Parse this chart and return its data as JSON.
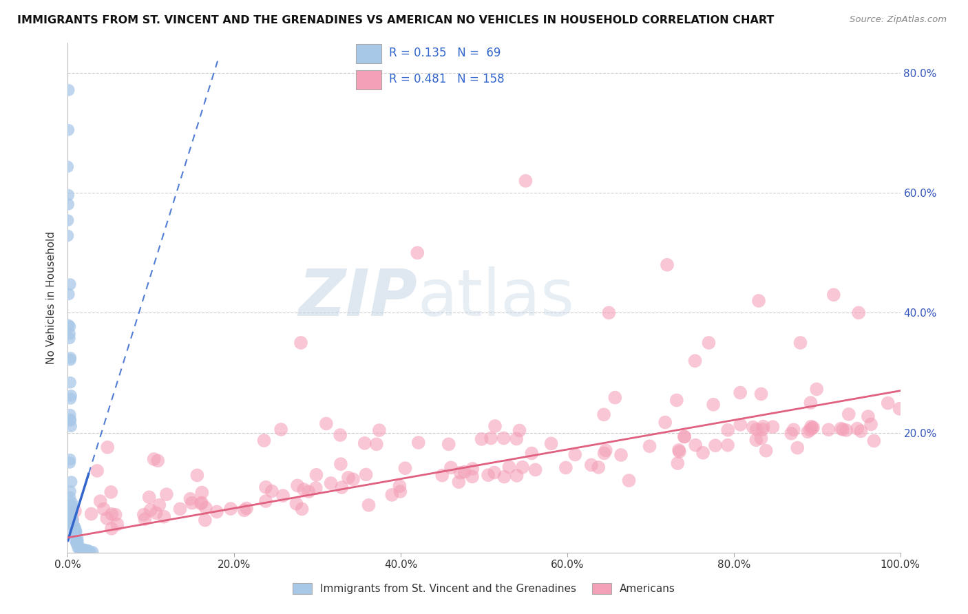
{
  "title": "IMMIGRANTS FROM ST. VINCENT AND THE GRENADINES VS AMERICAN NO VEHICLES IN HOUSEHOLD CORRELATION CHART",
  "source": "Source: ZipAtlas.com",
  "ylabel": "No Vehicles in Household",
  "blue_R": 0.135,
  "blue_N": 69,
  "pink_R": 0.481,
  "pink_N": 158,
  "blue_color": "#a8c8e8",
  "pink_color": "#f4a0b8",
  "blue_line_color": "#3366cc",
  "pink_line_color": "#e06080",
  "legend_blue_label": "Immigrants from St. Vincent and the Grenadines",
  "legend_pink_label": "Americans",
  "watermark_zip": "ZIP",
  "watermark_atlas": "atlas",
  "xlim": [
    0.0,
    1.0
  ],
  "ylim": [
    0.0,
    0.85
  ],
  "ytick_vals": [
    0.0,
    0.2,
    0.4,
    0.6,
    0.8
  ],
  "ytick_labels": [
    "",
    "20.0%",
    "40.0%",
    "60.0%",
    "80.0%"
  ],
  "xtick_vals": [
    0.0,
    0.2,
    0.4,
    0.6,
    0.8,
    1.0
  ],
  "xtick_labels": [
    "0.0%",
    "20.0%",
    "40.0%",
    "60.0%",
    "80.0%",
    "100.0%"
  ]
}
